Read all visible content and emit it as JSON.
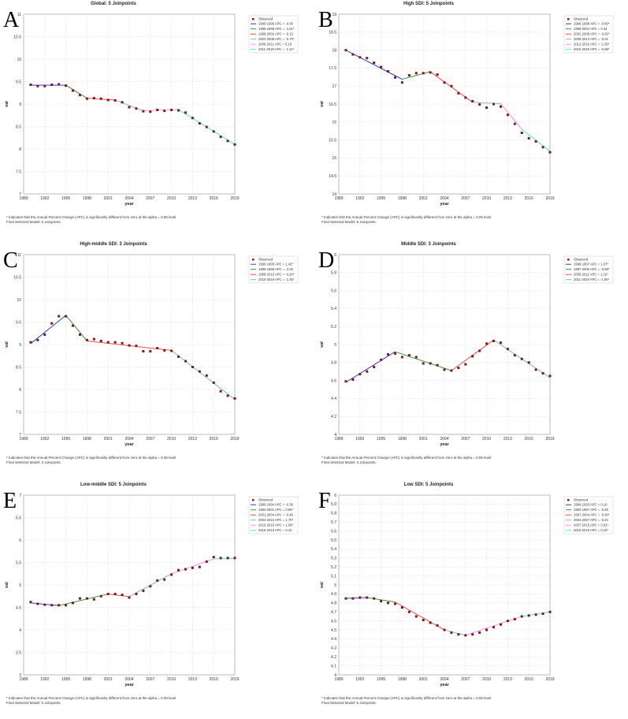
{
  "footnote_line1": "* Indicates that the Annual Percent Change (APC) is significantly different from zero at the alpha = 0.05 level",
  "legend_observed": "Observed",
  "xlabel": "year",
  "ylabel": "val",
  "x_ticks": [
    1989,
    1992,
    1995,
    1998,
    2001,
    2004,
    2007,
    2010,
    2013,
    2016,
    2019
  ],
  "x_tick_labels": [
    "1989",
    "1992",
    "1995",
    "1998",
    "2001",
    "2004",
    "2007",
    "2010",
    "2013",
    "2016",
    "2019"
  ],
  "colors": [
    "#1f1fd0",
    "#2a8a2a",
    "#ff3030",
    "#6fb0d8",
    "#ff80ff",
    "#30e8e8"
  ],
  "chart_data": [
    {
      "letter": "A",
      "type": "line",
      "title": "Global: 5 Joinpoints",
      "final_model": "Final Selected Model: 5 Joinpoints.",
      "ylim": [
        7,
        11
      ],
      "yticks": [
        7,
        7.5,
        8,
        8.5,
        9,
        9.5,
        10,
        10.5,
        11
      ],
      "ytick_labels": [
        "7",
        "7.5",
        "8",
        "8.5",
        "9",
        "9.5",
        "10",
        "10.5",
        "11"
      ],
      "x": [
        1990,
        1991,
        1992,
        1993,
        1994,
        1995,
        1996,
        1997,
        1998,
        1999,
        2000,
        2001,
        2002,
        2003,
        2004,
        2005,
        2006,
        2007,
        2008,
        2009,
        2010,
        2011,
        2012,
        2013,
        2014,
        2015,
        2016,
        2017,
        2018,
        2019
      ],
      "observed": [
        9.43,
        9.4,
        9.4,
        9.43,
        9.44,
        9.41,
        9.3,
        9.2,
        9.12,
        9.13,
        9.12,
        9.09,
        9.08,
        9.04,
        8.93,
        8.9,
        8.84,
        8.83,
        8.87,
        8.85,
        8.87,
        8.86,
        8.81,
        8.69,
        8.57,
        8.49,
        8.39,
        8.27,
        8.18,
        8.1
      ],
      "breakpoints": [
        1990,
        1995,
        1998,
        2002,
        2006,
        2011,
        2019
      ],
      "fit": [
        9.42,
        9.42,
        9.13,
        9.09,
        8.85,
        8.88,
        8.1
      ],
      "legend": [
        "1990-1995 APC = -0.00",
        "1995-1998 APC = -1.01*",
        "1998-2002 APC = -0.13",
        "2002-2006 APC = -0.70*",
        "2006-2011 APC = 0.10",
        "2011-2019 APC = -1.14*"
      ]
    },
    {
      "letter": "B",
      "type": "line",
      "title": "High SDI: 5 Joinpoints",
      "final_model": "Final Selected Model: 5 Joinpoints.",
      "ylim": [
        14,
        19
      ],
      "yticks": [
        14,
        14.5,
        15,
        15.5,
        16,
        16.5,
        17,
        17.5,
        18,
        18.5,
        19
      ],
      "ytick_labels": [
        "14",
        "14.5",
        "15",
        "15.5",
        "16",
        "16.5",
        "17",
        "17.5",
        "18",
        "18.5",
        "19"
      ],
      "x": [
        1990,
        1991,
        1992,
        1993,
        1994,
        1995,
        1996,
        1997,
        1998,
        1999,
        2000,
        2001,
        2002,
        2003,
        2004,
        2005,
        2006,
        2007,
        2008,
        2009,
        2010,
        2011,
        2012,
        2013,
        2014,
        2015,
        2016,
        2017,
        2018,
        2019
      ],
      "observed": [
        18.0,
        17.88,
        17.8,
        17.78,
        17.65,
        17.53,
        17.41,
        17.24,
        17.1,
        17.3,
        17.36,
        17.36,
        17.38,
        17.32,
        17.1,
        17.0,
        16.8,
        16.68,
        16.58,
        16.49,
        16.4,
        16.5,
        16.43,
        16.2,
        15.95,
        15.7,
        15.55,
        15.46,
        15.3,
        15.16
      ],
      "breakpoints": [
        1990,
        1998,
        2002,
        2008,
        2012,
        2015,
        2019
      ],
      "fit": [
        18.0,
        17.19,
        17.4,
        16.55,
        16.51,
        15.8,
        15.19
      ],
      "legend": [
        "1990-1998 APC = -0.60*",
        "1998-2002 APC = 0.34",
        "2002-2008 APC = -0.82*",
        "2008-2012 APC = -0.01",
        "2012-2015 APC = -1.50*",
        "2015-2019 APC = -0.88*"
      ]
    },
    {
      "letter": "C",
      "type": "line",
      "title": "High-middle SDI: 3 Joinpoints",
      "final_model": "Final Selected Model: 3 Joinpoints.",
      "ylim": [
        7,
        11
      ],
      "yticks": [
        7,
        7.5,
        8,
        8.5,
        9,
        9.5,
        10,
        10.5,
        11
      ],
      "ytick_labels": [
        "7",
        "7.5",
        "8",
        "8.5",
        "9",
        "9.5",
        "10",
        "10.5",
        "11"
      ],
      "x": [
        1990,
        1991,
        1992,
        1993,
        1994,
        1995,
        1996,
        1997,
        1998,
        1999,
        2000,
        2001,
        2002,
        2003,
        2004,
        2005,
        2006,
        2007,
        2008,
        2009,
        2010,
        2011,
        2012,
        2013,
        2014,
        2015,
        2016,
        2017,
        2018,
        2019
      ],
      "observed": [
        9.05,
        9.1,
        9.22,
        9.47,
        9.63,
        9.63,
        9.42,
        9.22,
        9.1,
        9.12,
        9.08,
        9.05,
        9.05,
        9.03,
        8.98,
        8.97,
        8.85,
        8.85,
        8.92,
        8.87,
        8.86,
        8.73,
        8.63,
        8.5,
        8.4,
        8.31,
        8.15,
        7.96,
        7.86,
        7.8
      ],
      "breakpoints": [
        1990,
        1995,
        1998,
        2010,
        2019
      ],
      "fit": [
        9.02,
        9.65,
        9.08,
        8.87,
        7.78
      ],
      "legend": [
        "1990-1995 APC = 1.42*",
        "1995-1998 APC = -2.03",
        "1998-2010 APC = -0.20*",
        "2010-2019 APC = -1.45*"
      ]
    },
    {
      "letter": "D",
      "type": "line",
      "title": "Middle SDI: 3 Joinpoints",
      "final_model": "Final Selected Model: 3 Joinpoints.",
      "ylim": [
        4,
        6
      ],
      "yticks": [
        4,
        4.2,
        4.4,
        4.6,
        4.8,
        5,
        5.2,
        5.4,
        5.6,
        5.8,
        6
      ],
      "ytick_labels": [
        "4",
        "4.2",
        "4.4",
        "4.6",
        "4.8",
        "5",
        "5.2",
        "5.4",
        "5.6",
        "5.8",
        "6"
      ],
      "x": [
        1990,
        1991,
        1992,
        1993,
        1994,
        1995,
        1996,
        1997,
        1998,
        1999,
        2000,
        2001,
        2002,
        2003,
        2004,
        2005,
        2006,
        2007,
        2008,
        2009,
        2010,
        2011,
        2012,
        2013,
        2014,
        2015,
        2016,
        2017,
        2018,
        2019
      ],
      "observed": [
        4.59,
        4.61,
        4.67,
        4.7,
        4.75,
        4.83,
        4.89,
        4.9,
        4.86,
        4.88,
        4.86,
        4.79,
        4.79,
        4.77,
        4.72,
        4.71,
        4.74,
        4.78,
        4.87,
        4.93,
        5.01,
        5.04,
        5.02,
        4.95,
        4.88,
        4.84,
        4.8,
        4.72,
        4.68,
        4.65
      ],
      "breakpoints": [
        1990,
        1997,
        2005,
        2011,
        2019
      ],
      "fit": [
        4.58,
        4.92,
        4.71,
        5.05,
        4.63
      ],
      "legend": [
        "1990-1997 APC = 1.07*",
        "1997-2005 APC = -0.59*",
        "2005-2011 APC = 1.22*",
        "2011-2019 APC = -1.06*"
      ]
    },
    {
      "letter": "E",
      "type": "line",
      "title": "Low-middle SDI: 5 Joinpoints",
      "final_model": "Final Selected Model: 5 Joinpoints.",
      "ylim": [
        3,
        7
      ],
      "yticks": [
        3,
        3.5,
        4,
        4.5,
        5,
        5.5,
        6,
        6.5,
        7
      ],
      "ytick_labels": [
        "3",
        "3.5",
        "4",
        "4.5",
        "5",
        "5.5",
        "6",
        "6.5",
        "7"
      ],
      "x": [
        1990,
        1991,
        1992,
        1993,
        1994,
        1995,
        1996,
        1997,
        1998,
        1999,
        2000,
        2001,
        2002,
        2003,
        2004,
        2005,
        2006,
        2007,
        2008,
        2009,
        2010,
        2011,
        2012,
        2013,
        2014,
        2015,
        2016,
        2017,
        2018,
        2019
      ],
      "observed": [
        4.62,
        4.58,
        4.56,
        4.55,
        4.55,
        4.55,
        4.6,
        4.7,
        4.7,
        4.68,
        4.75,
        4.8,
        4.8,
        4.78,
        4.72,
        4.8,
        4.87,
        4.97,
        5.1,
        5.12,
        5.23,
        5.33,
        5.35,
        5.38,
        5.4,
        5.52,
        5.62,
        5.6,
        5.6,
        5.6
      ],
      "breakpoints": [
        1990,
        1994,
        2001,
        2004,
        2010,
        2016,
        2019
      ],
      "fit": [
        4.6,
        4.54,
        4.8,
        4.74,
        5.25,
        5.58,
        5.59
      ],
      "legend": [
        "1990-1994 APC = -0.38",
        "1994-2001 APC = 0.80*",
        "2001-2004 APC = -0.46",
        "2004-2010 APC = 1.70*",
        "2010-2016 APC = 1.09*",
        "2016-2019 APC = 0.10"
      ]
    },
    {
      "letter": "F",
      "type": "line",
      "title": "Low SDI: 5 Joinpoints",
      "final_model": "Final Selected Model: 5 Joinpoints.",
      "ylim": [
        4,
        6
      ],
      "yticks": [
        4,
        4.1,
        4.2,
        4.3,
        4.4,
        4.5,
        4.6,
        4.7,
        4.8,
        4.9,
        5,
        5.1,
        5.2,
        5.3,
        5.4,
        5.5,
        5.6,
        5.7,
        5.8,
        5.9,
        6
      ],
      "ytick_labels": [
        "4",
        "4.1",
        "4.2",
        "4.3",
        "4.4",
        "4.5",
        "4.6",
        "4.7",
        "4.8",
        "4.9",
        "5",
        "5.1",
        "5.2",
        "5.3",
        "5.4",
        "5.5",
        "5.6",
        "5.7",
        "5.8",
        "5.9",
        "6"
      ],
      "x": [
        1990,
        1991,
        1992,
        1993,
        1994,
        1995,
        1996,
        1997,
        1998,
        1999,
        2000,
        2001,
        2002,
        2003,
        2004,
        2005,
        2006,
        2007,
        2008,
        2009,
        2010,
        2011,
        2012,
        2013,
        2014,
        2015,
        2016,
        2017,
        2018,
        2019
      ],
      "observed": [
        4.85,
        4.85,
        4.86,
        4.86,
        4.85,
        4.82,
        4.8,
        4.79,
        4.75,
        4.7,
        4.65,
        4.61,
        4.58,
        4.55,
        4.5,
        4.47,
        4.45,
        4.44,
        4.45,
        4.47,
        4.5,
        4.53,
        4.56,
        4.6,
        4.62,
        4.65,
        4.66,
        4.67,
        4.68,
        4.7
      ],
      "breakpoints": [
        1990,
        1993,
        1997,
        2004,
        2007,
        2015,
        2019
      ],
      "fit": [
        4.85,
        4.86,
        4.81,
        4.5,
        4.44,
        4.65,
        4.7
      ],
      "legend": [
        "1990-1993 APC = 0.10",
        "1993-1997 APC = -0.25",
        "1997-2004 APC = -0.90*",
        "2004-2007 APC = -0.43",
        "2007-2015 APC = 0.61*",
        "2015-2019 APC = 0.23*"
      ]
    }
  ]
}
